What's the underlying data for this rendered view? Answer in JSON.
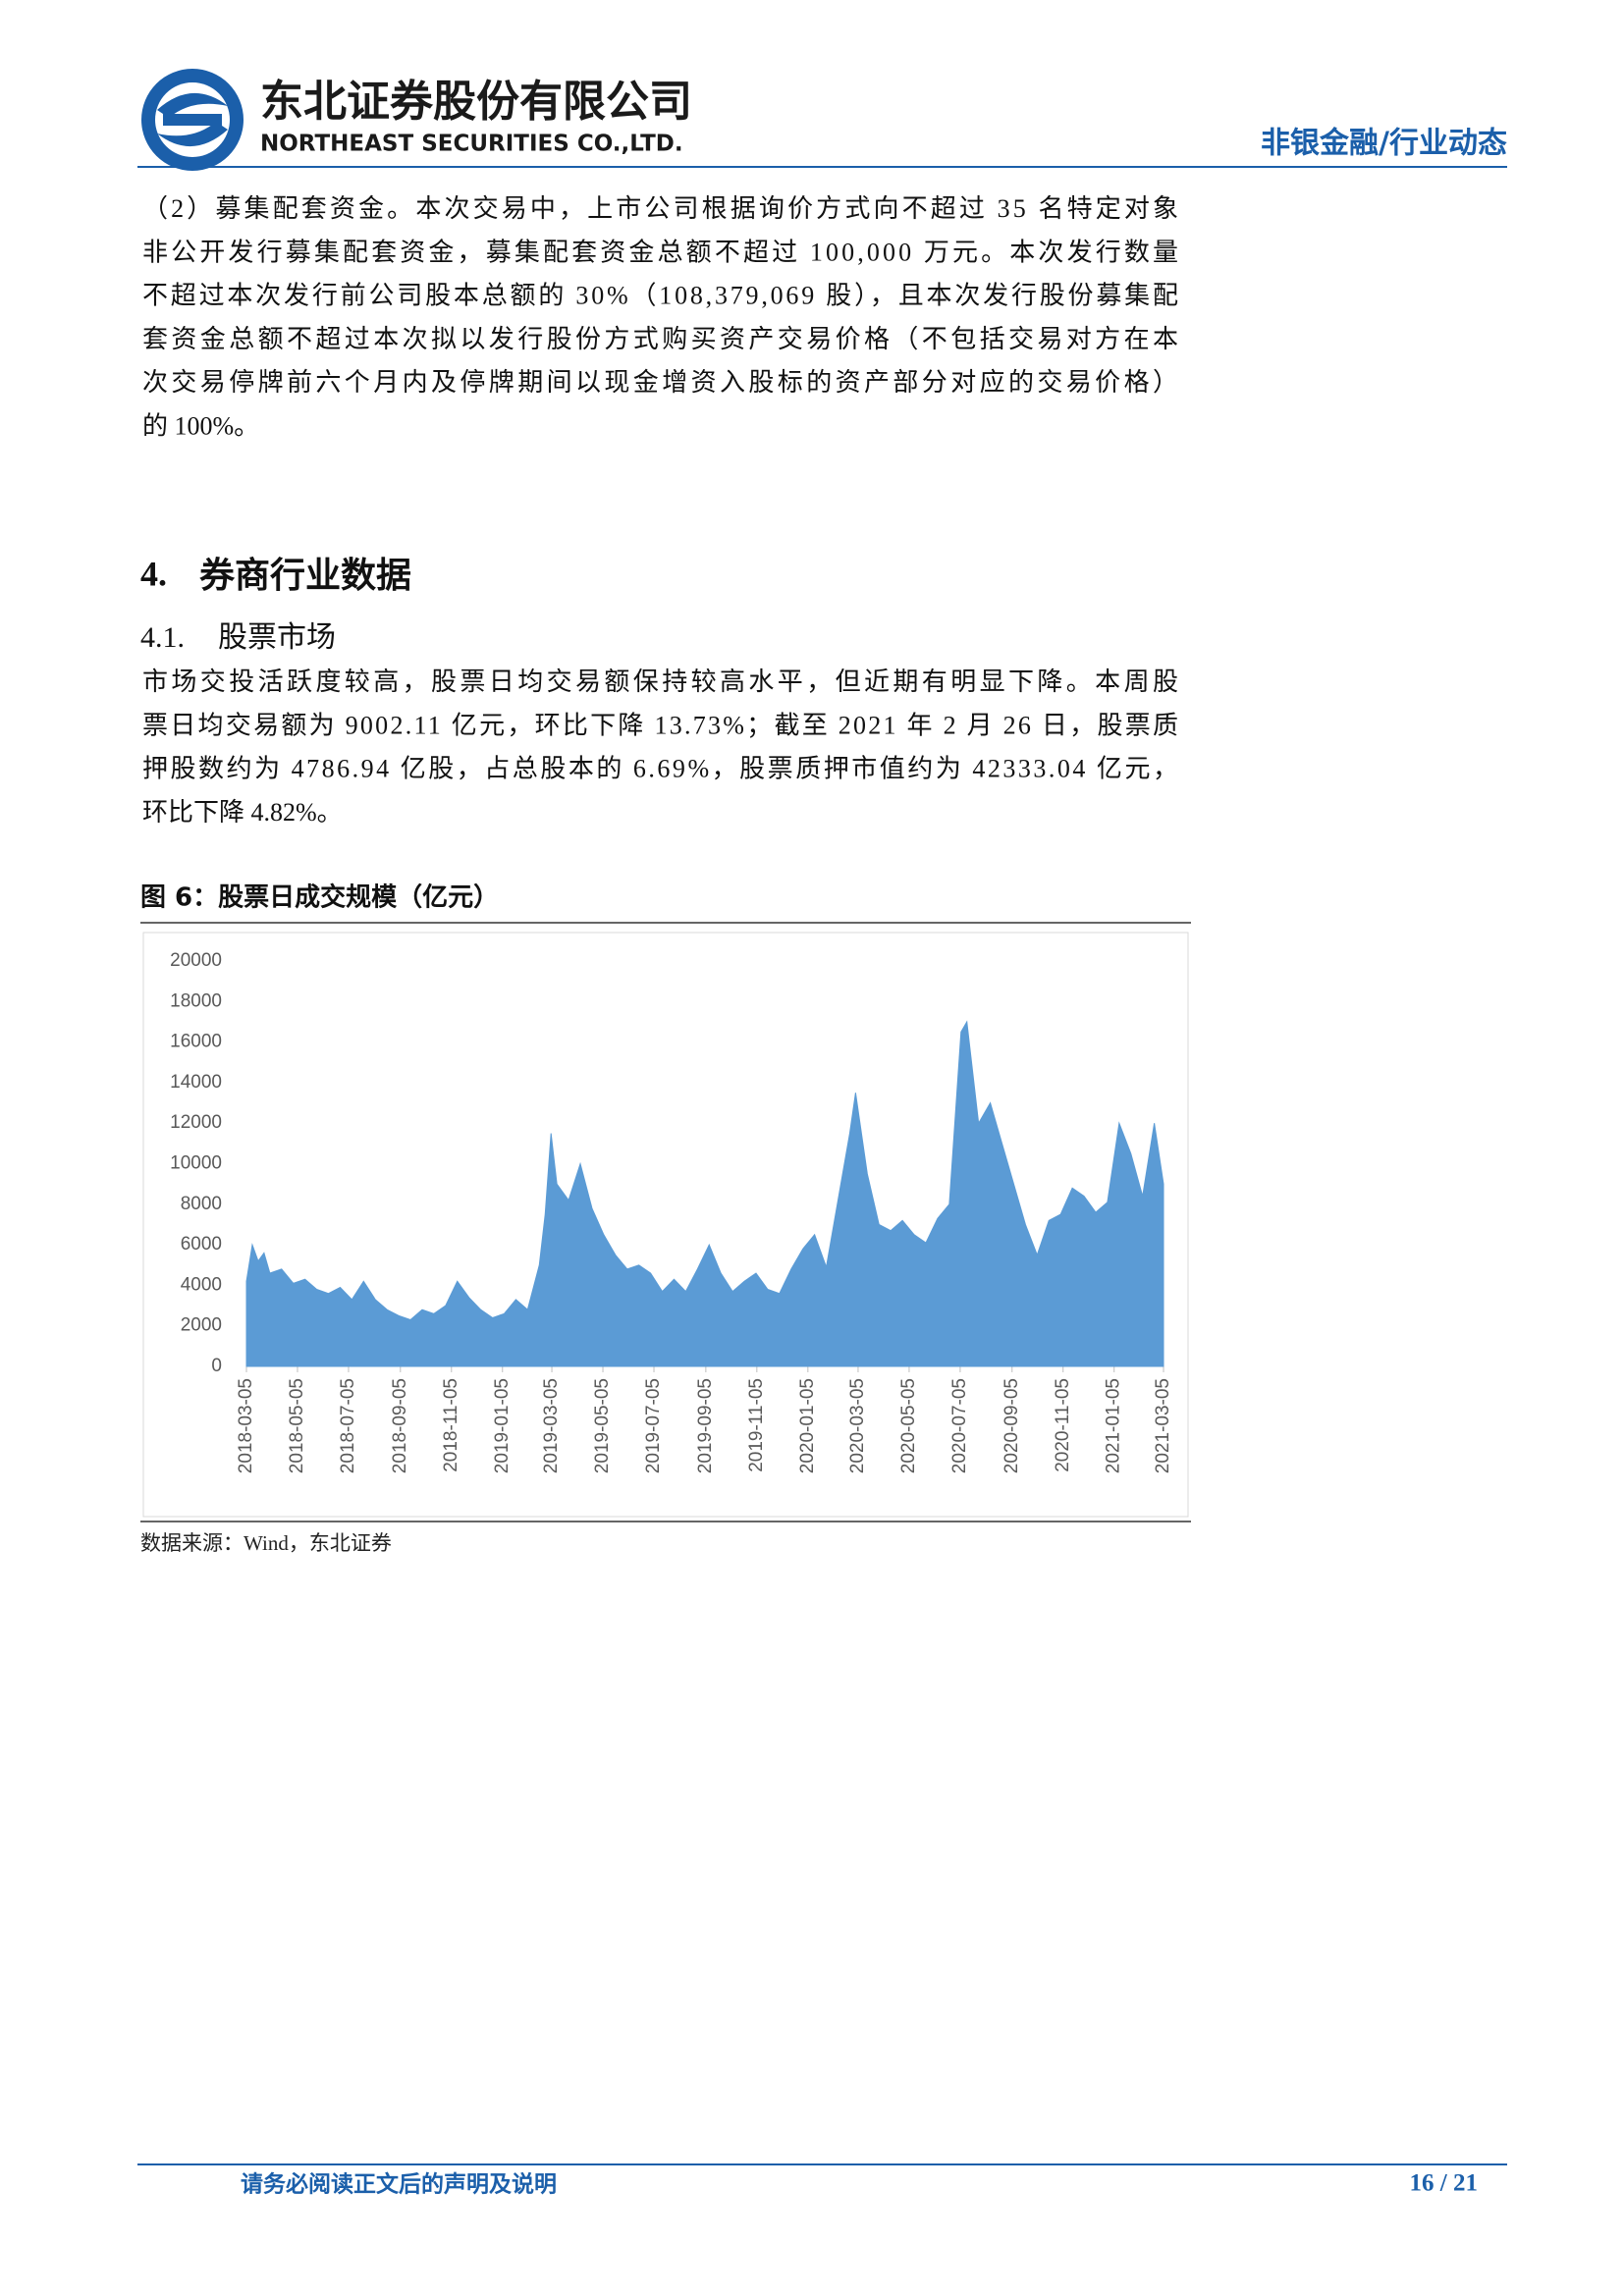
{
  "header": {
    "company": "东北证券股份有限公司",
    "company_en": "NORTHEAST SECURITIES CO.,LTD.",
    "category": "非银金融/行业动态"
  },
  "paragraphs": [
    {
      "lines": [
        "（2）募集配套资金。本次交易中，上市公司根据询价方式向不超过 35 名特定对象",
        "非公开发行募集配套资金，募集配套资金总额不超过 100,000 万元。本次发行数量",
        "不超过本次发行前公司股本总额的 30%（108,379,069 股），且本次发行股份募集配",
        "套资金总额不超过本次拟以发行股份方式购买资产交易价格（不包括交易对方在本",
        "次交易停牌前六个月内及停牌期间以现金增资入股标的资产部分对应的交易价格）",
        "的 100%。"
      ]
    },
    {
      "lines": [
        "市场交投活跃度较高，股票日均交易额保持较高水平，但近期有明显下降。本周股",
        "票日均交易额为 9002.11 亿元，环比下降 13.73%；截至 2021 年 2 月 26 日，股票质",
        "押股数约为 4786.94 亿股，占总股本的 6.69%，股票质押市值约为 42333.04 亿元，",
        "环比下降 4.82%。"
      ]
    }
  ],
  "section": {
    "number": "4.",
    "text": "券商行业数据"
  },
  "subsection": {
    "number": "4.1.",
    "text": "股票市场"
  },
  "figure": {
    "title": "图 6：股票日成交规模（亿元）",
    "source": "数据来源：Wind，东北证券"
  },
  "chart_data": {
    "type": "area",
    "x": [
      "2018-03-05",
      "2018-03-12",
      "2018-03-19",
      "2018-03-26",
      "2018-04-02",
      "2018-04-16",
      "2018-04-30",
      "2018-05-14",
      "2018-05-28",
      "2018-06-11",
      "2018-06-25",
      "2018-07-09",
      "2018-07-23",
      "2018-08-06",
      "2018-08-20",
      "2018-09-03",
      "2018-09-17",
      "2018-10-01",
      "2018-10-15",
      "2018-10-29",
      "2018-11-12",
      "2018-11-26",
      "2018-12-10",
      "2018-12-24",
      "2019-01-07",
      "2019-01-21",
      "2019-02-04",
      "2019-02-18",
      "2019-02-25",
      "2019-03-04",
      "2019-03-11",
      "2019-03-25",
      "2019-04-08",
      "2019-04-22",
      "2019-05-06",
      "2019-05-20",
      "2019-06-03",
      "2019-06-17",
      "2019-07-01",
      "2019-07-15",
      "2019-07-29",
      "2019-08-12",
      "2019-08-26",
      "2019-09-09",
      "2019-09-23",
      "2019-10-07",
      "2019-10-21",
      "2019-11-04",
      "2019-11-18",
      "2019-12-02",
      "2019-12-16",
      "2019-12-30",
      "2020-01-13",
      "2020-01-27",
      "2020-02-10",
      "2020-02-24",
      "2020-03-02",
      "2020-03-16",
      "2020-03-30",
      "2020-04-13",
      "2020-04-27",
      "2020-05-11",
      "2020-05-25",
      "2020-06-08",
      "2020-06-22",
      "2020-07-06",
      "2020-07-13",
      "2020-07-27",
      "2020-08-10",
      "2020-08-24",
      "2020-09-07",
      "2020-09-21",
      "2020-10-05",
      "2020-10-19",
      "2020-11-02",
      "2020-11-16",
      "2020-11-30",
      "2020-12-14",
      "2020-12-28",
      "2021-01-11",
      "2021-01-25",
      "2021-02-08",
      "2021-02-22",
      "2021-03-05"
    ],
    "series": [
      {
        "name": "股票日成交规模",
        "color": "#5b9bd5",
        "values": [
          4200,
          6000,
          5200,
          5600,
          4600,
          4800,
          4100,
          4300,
          3800,
          3600,
          3900,
          3300,
          4200,
          3300,
          2800,
          2500,
          2300,
          2800,
          2600,
          3000,
          4200,
          3400,
          2800,
          2400,
          2600,
          3300,
          2800,
          5000,
          7500,
          11500,
          9000,
          8200,
          10000,
          7800,
          6500,
          5500,
          4800,
          5000,
          4600,
          3700,
          4300,
          3700,
          4800,
          6000,
          4600,
          3700,
          4200,
          4600,
          3800,
          3600,
          4800,
          5800,
          6500,
          4900,
          8200,
          11500,
          13500,
          9500,
          7000,
          6700,
          7200,
          6500,
          6100,
          7300,
          8000,
          16500,
          17000,
          12000,
          13000,
          11000,
          9000,
          7000,
          5500,
          7200,
          7500,
          8800,
          8400,
          7600,
          8100,
          12000,
          10500,
          8400,
          12000,
          9000
        ]
      }
    ],
    "xlim": [
      "2018-03-05",
      "2021-03-05"
    ],
    "xticks": [
      "2018-03-05",
      "2018-05-05",
      "2018-07-05",
      "2018-09-05",
      "2018-11-05",
      "2019-01-05",
      "2019-03-05",
      "2019-05-05",
      "2019-07-05",
      "2019-09-05",
      "2019-11-05",
      "2020-01-05",
      "2020-03-05",
      "2020-05-05",
      "2020-07-05",
      "2020-09-05",
      "2020-11-05",
      "2021-01-05",
      "2021-03-05"
    ],
    "ylim": [
      0,
      20000
    ],
    "yticks": [
      0,
      2000,
      4000,
      6000,
      8000,
      10000,
      12000,
      14000,
      16000,
      18000,
      20000
    ]
  },
  "footer": {
    "notice": "请务必阅读正文后的声明及说明",
    "page": "16 / 21"
  }
}
